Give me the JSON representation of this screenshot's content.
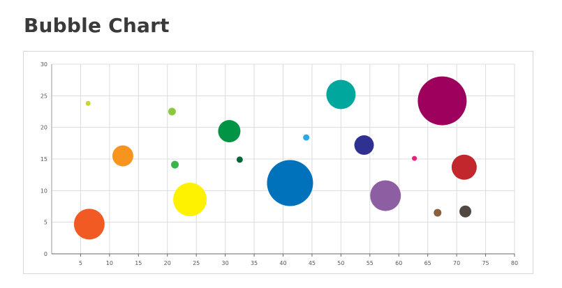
{
  "page": {
    "title": "Bubble Chart"
  },
  "chart_data": {
    "type": "scatter",
    "subtype": "bubble",
    "title": "Bubble Chart",
    "xlabel": "",
    "ylabel": "",
    "xlim": [
      0,
      80
    ],
    "ylim": [
      0,
      30
    ],
    "xticks": [
      5,
      10,
      15,
      20,
      25,
      30,
      35,
      40,
      45,
      50,
      55,
      60,
      65,
      70,
      75,
      80
    ],
    "yticks": [
      0,
      5,
      10,
      15,
      20,
      25,
      30
    ],
    "grid": true,
    "legend": "none",
    "points": [
      {
        "x": 6.3,
        "y": 23.8,
        "size": 3.5,
        "color": "#c8d62e"
      },
      {
        "x": 6.5,
        "y": 4.7,
        "size": 22,
        "color": "#f15a22"
      },
      {
        "x": 12.3,
        "y": 15.5,
        "size": 15,
        "color": "#f7941d"
      },
      {
        "x": 20.8,
        "y": 22.5,
        "size": 5.5,
        "color": "#8dc63f"
      },
      {
        "x": 21.3,
        "y": 14.1,
        "size": 5.5,
        "color": "#39b54a"
      },
      {
        "x": 23.9,
        "y": 8.6,
        "size": 24,
        "color": "#fff200"
      },
      {
        "x": 30.7,
        "y": 19.4,
        "size": 16,
        "color": "#009444"
      },
      {
        "x": 32.5,
        "y": 14.9,
        "size": 4.5,
        "color": "#006838"
      },
      {
        "x": 41.2,
        "y": 11.2,
        "size": 33,
        "color": "#0072bc"
      },
      {
        "x": 44.0,
        "y": 18.4,
        "size": 4.5,
        "color": "#29abe2"
      },
      {
        "x": 50.0,
        "y": 25.2,
        "size": 21,
        "color": "#00a79d"
      },
      {
        "x": 54.0,
        "y": 17.2,
        "size": 14,
        "color": "#2e3192"
      },
      {
        "x": 57.7,
        "y": 9.2,
        "size": 22,
        "color": "#8e5ea2"
      },
      {
        "x": 62.7,
        "y": 15.1,
        "size": 3.5,
        "color": "#ed1e79"
      },
      {
        "x": 66.7,
        "y": 6.5,
        "size": 5.5,
        "color": "#8b5e3c"
      },
      {
        "x": 67.5,
        "y": 24.2,
        "size": 35,
        "color": "#9e005d"
      },
      {
        "x": 71.3,
        "y": 13.7,
        "size": 18,
        "color": "#c1272d"
      },
      {
        "x": 71.5,
        "y": 6.7,
        "size": 8.5,
        "color": "#534741"
      }
    ]
  }
}
